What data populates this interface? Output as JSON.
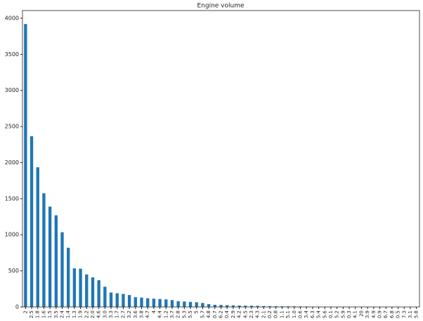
{
  "chart_data": {
    "type": "bar",
    "title": "Engine volume",
    "categories": [
      "2",
      "2.5",
      "1.8",
      "1.6",
      "1.5",
      "3.5",
      "2.4",
      "1.4",
      "1.3",
      "1.9",
      "2.2",
      "2.0",
      "4.6",
      "3.0",
      "3.3",
      "1.7",
      "2.7",
      "3.2",
      "3.6",
      "3.8",
      "4.7",
      "4",
      "4.4",
      "1.2",
      "3.7",
      "2.8",
      "5.3",
      "5.5",
      "5",
      "5.7",
      "4.8",
      "0.7",
      "6.2",
      "0.4",
      "2.9",
      "4.2",
      "4.5",
      "2.3",
      "4.3",
      "2.1",
      "0.2",
      "0.8",
      "1.1",
      "5.1",
      "1.0",
      "0.6",
      "3.4",
      "6.3",
      "5.4",
      "5.6",
      "0.1",
      "5.2",
      "5.9",
      "0.3",
      "4.1",
      "20",
      "3.9",
      "4.9",
      "0.9",
      "6.7",
      "6.8",
      "0.5",
      "7.3",
      "3.1",
      "5.8"
    ],
    "values": [
      3920,
      2365,
      1935,
      1575,
      1390,
      1270,
      1035,
      820,
      535,
      530,
      450,
      410,
      370,
      280,
      200,
      190,
      180,
      165,
      135,
      130,
      120,
      115,
      110,
      105,
      95,
      80,
      75,
      70,
      65,
      55,
      40,
      30,
      28,
      25,
      22,
      20,
      18,
      17,
      15,
      12,
      11,
      10,
      9,
      8,
      8,
      7,
      6,
      5,
      5,
      4,
      4,
      3,
      3,
      3,
      2,
      2,
      2,
      2,
      1,
      1,
      1,
      1,
      1,
      1,
      1
    ],
    "color": "#1f77b4",
    "ylim": [
      0,
      4107
    ],
    "yticks": [
      0,
      500,
      1000,
      1500,
      2000,
      2500,
      3000,
      3500,
      4000
    ]
  }
}
